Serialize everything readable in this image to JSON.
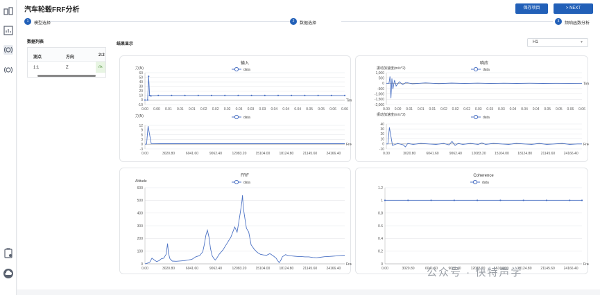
{
  "app": {
    "title": "汽车轮毂FRF分析"
  },
  "toolbar": {
    "save_label": "保存项目",
    "next_label": "> NEXT"
  },
  "steps": [
    {
      "num": "1",
      "label": "模型选择"
    },
    {
      "num": "2",
      "label": "数据选择"
    },
    {
      "num": "3",
      "label": "频响函数分析"
    }
  ],
  "sidebar": {
    "icons": [
      "model-icon",
      "chart-icon",
      "sensor-icon",
      "sensor-2-icon",
      "report-icon",
      "cloud-icon"
    ]
  },
  "data_list": {
    "title": "数据列表",
    "headers": [
      "测点",
      "方向",
      "2:2"
    ],
    "rows": [
      {
        "point": "1:1",
        "direction": "Z",
        "value": "√/x"
      }
    ]
  },
  "results": {
    "title": "结果显示",
    "select_value": "H1"
  },
  "watermark": "公众号 · 快特声学",
  "colors": {
    "accent": "#2260b8",
    "line": "#4c72c4"
  },
  "chart_data": [
    {
      "id": "input-time",
      "type": "line",
      "title": "输入",
      "legend": "data",
      "ylabel": "力(N)",
      "xlabel": "Time(s)",
      "ylim": [
        -10,
        60
      ],
      "yticks": [
        -10,
        0,
        10,
        20,
        30,
        40,
        50,
        60
      ],
      "xlim": [
        0,
        0.06
      ],
      "xtick_labels": [
        "0.00",
        "0.00",
        "0.01",
        "0.01",
        "0.01",
        "0.02",
        "0.02",
        "0.02",
        "0.03",
        "0.03",
        "0.03",
        "0.04",
        "0.04",
        "0.04",
        "0.05",
        "0.05",
        "0.06",
        "0.06"
      ],
      "x": [
        0,
        0.0008,
        0.0011,
        0.0014,
        0.0018,
        0.004,
        0.008,
        0.012,
        0.016,
        0.02,
        0.024,
        0.028,
        0.032,
        0.036,
        0.04,
        0.044,
        0.048,
        0.052,
        0.056,
        0.06
      ],
      "y": [
        0,
        0,
        52,
        10,
        9,
        10,
        10,
        10,
        10,
        10,
        10,
        10,
        10,
        10,
        10,
        10,
        10,
        10,
        10,
        10
      ]
    },
    {
      "id": "response-time",
      "type": "line",
      "title": "响应",
      "legend": "data",
      "ylabel": "振动加速度(m/s^2)",
      "xlabel": "Time(s)",
      "ylim": [
        -2000,
        1000
      ],
      "yticks": [
        -2000,
        -1500,
        -1000,
        -500,
        0,
        500,
        1000
      ],
      "ytick_labels": [
        "-2,000",
        "-1,500",
        "-1,000",
        "-500",
        "0",
        "500",
        "1,000"
      ],
      "xlim": [
        0,
        0.06
      ],
      "xtick_labels": [
        "0.00",
        "0.00",
        "0.01",
        "0.01",
        "0.01",
        "0.02",
        "0.02",
        "0.02",
        "0.03",
        "0.03",
        "0.03",
        "0.04",
        "0.04",
        "0.04",
        "0.05",
        "0.05",
        "0.06",
        "0.06"
      ],
      "x": [
        0,
        0.0008,
        0.0011,
        0.0014,
        0.0017,
        0.002,
        0.0025,
        0.003,
        0.004,
        0.005,
        0.006,
        0.008,
        0.012,
        0.016,
        0.02,
        0.024,
        0.028,
        0.032,
        0.036,
        0.04,
        0.044,
        0.048,
        0.052,
        0.056,
        0.06
      ],
      "y": [
        0,
        0,
        650,
        -1400,
        450,
        -550,
        300,
        -250,
        150,
        -120,
        80,
        -50,
        40,
        -30,
        25,
        -20,
        15,
        -15,
        10,
        -10,
        8,
        -8,
        5,
        -5,
        0
      ]
    },
    {
      "id": "input-freq",
      "type": "line",
      "legend": "data",
      "ylabel": "力(N)",
      "xlabel": "Freq(Hz)",
      "ylim": [
        -3,
        12
      ],
      "yticks": [
        -3,
        0,
        3,
        6,
        9,
        12
      ],
      "xlim": [
        0,
        25600
      ],
      "xtick_values": [
        3020.8,
        6041.6,
        9062.4,
        12083.2,
        15104.0,
        18124.8,
        21145.6,
        24166.4
      ],
      "xtick_labels": [
        "3020.80",
        "6041.60",
        "9062.40",
        "12083.20",
        "15104.00",
        "18124.80",
        "21145.60",
        "24166.40"
      ],
      "x": [
        0,
        200,
        400,
        800,
        2000,
        4000,
        8000,
        12000,
        16000,
        20000,
        24000,
        25600
      ],
      "y": [
        0,
        0,
        11.5,
        0.4,
        0.3,
        0.3,
        0.3,
        0.3,
        0.3,
        0.3,
        0.3,
        0.3
      ]
    },
    {
      "id": "response-freq",
      "type": "line",
      "legend": "data",
      "ylabel": "振动加速度(m/s^2)",
      "xlabel": "Freq(Hz)",
      "ylim": [
        -10,
        40
      ],
      "yticks": [
        -10,
        0,
        10,
        20,
        30,
        40
      ],
      "xlim": [
        0,
        25600
      ],
      "xtick_values": [
        3020.8,
        6041.6,
        9062.4,
        12083.2,
        15104.0,
        18124.8,
        21145.6,
        24166.4
      ],
      "xtick_labels": [
        "3020.80",
        "6041.60",
        "9062.40",
        "12083.20",
        "15104.00",
        "18124.80",
        "21145.60",
        "24166.40"
      ],
      "x": [
        0,
        200,
        400,
        800,
        1500,
        2200,
        2500,
        2800,
        3500,
        4500,
        5500,
        6500,
        7500,
        8200,
        8600,
        9000,
        9400,
        10000,
        11000,
        12000,
        12500,
        13000,
        14000,
        15000,
        16000,
        17000,
        18000,
        19000,
        20000,
        21000,
        22000,
        23000,
        24000,
        25000,
        25600
      ],
      "y": [
        0,
        0,
        33,
        -3,
        1,
        -2,
        -6,
        1,
        -1,
        1,
        0,
        -1,
        1,
        -2,
        5,
        -3,
        1,
        -1,
        1,
        -1,
        2,
        -1,
        1,
        0,
        -1,
        1,
        0,
        -1,
        1,
        -1,
        0,
        1,
        -1,
        0,
        0
      ]
    },
    {
      "id": "frf",
      "type": "line",
      "title": "FRF",
      "legend": "data",
      "ylabel": "Altitude",
      "xlabel": "Freq(Hz)",
      "ylim": [
        0,
        600
      ],
      "yticks": [
        0,
        100,
        200,
        300,
        400,
        500,
        600
      ],
      "xlim": [
        0,
        25600
      ],
      "xtick_values": [
        3020.8,
        6041.6,
        9062.4,
        12083.2,
        15104.0,
        18124.8,
        21145.6,
        24166.4
      ],
      "xtick_labels": [
        "3020.80",
        "6041.60",
        "9062.40",
        "12083.20",
        "15104.00",
        "18124.80",
        "21145.60",
        "24166.40"
      ],
      "x": [
        0,
        300,
        600,
        900,
        1200,
        1500,
        1800,
        2100,
        2400,
        2700,
        2900,
        3000,
        3200,
        3500,
        4000,
        5000,
        6000,
        6500,
        7000,
        7400,
        7600,
        7800,
        8000,
        8200,
        8400,
        8600,
        8800,
        9000,
        9200,
        9500,
        10000,
        10500,
        11000,
        11500,
        11800,
        12000,
        12200,
        12400,
        12500,
        12600,
        12800,
        13000,
        13300,
        13600,
        14000,
        14400,
        14800,
        15200,
        15600,
        16000,
        16400,
        16800,
        17000,
        17200,
        17400,
        17600,
        18000,
        18400,
        18800,
        19200,
        19600,
        20000,
        20500,
        21000,
        21500,
        22000,
        22500,
        23000,
        23500,
        24000,
        24500,
        25000,
        25600
      ],
      "y": [
        0,
        5,
        12,
        45,
        30,
        18,
        25,
        40,
        45,
        75,
        160,
        85,
        40,
        22,
        20,
        25,
        35,
        55,
        65,
        95,
        150,
        225,
        265,
        210,
        120,
        65,
        45,
        30,
        45,
        75,
        110,
        160,
        210,
        290,
        250,
        320,
        400,
        480,
        540,
        440,
        360,
        280,
        250,
        150,
        115,
        90,
        75,
        70,
        68,
        80,
        65,
        45,
        25,
        10,
        28,
        55,
        72,
        65,
        62,
        60,
        58,
        58,
        55,
        55,
        50,
        48,
        52,
        56,
        58,
        60,
        62,
        66,
        68
      ]
    },
    {
      "id": "coherence",
      "type": "line",
      "title": "Coherence",
      "legend": "data",
      "xlabel": "Freq(Hz)",
      "ylim": [
        0,
        1.2
      ],
      "yticks": [
        0,
        0.2,
        0.4,
        0.6,
        0.8,
        1,
        1.2
      ],
      "xlim": [
        0,
        25600
      ],
      "xtick_values": [
        3020.8,
        6041.6,
        9062.4,
        12083.2,
        15104.0,
        18124.8,
        21145.6,
        24166.4
      ],
      "xtick_labels": [
        "3020.80",
        "6041.60",
        "9062.40",
        "12083.20",
        "15104.00",
        "18124.80",
        "21145.60",
        "24166.40"
      ],
      "x": [
        0,
        3000,
        6000,
        9000,
        12000,
        15000,
        18000,
        21000,
        24000,
        25600
      ],
      "y": [
        1,
        1,
        1,
        1,
        1,
        1,
        1,
        1,
        1,
        1
      ]
    }
  ]
}
